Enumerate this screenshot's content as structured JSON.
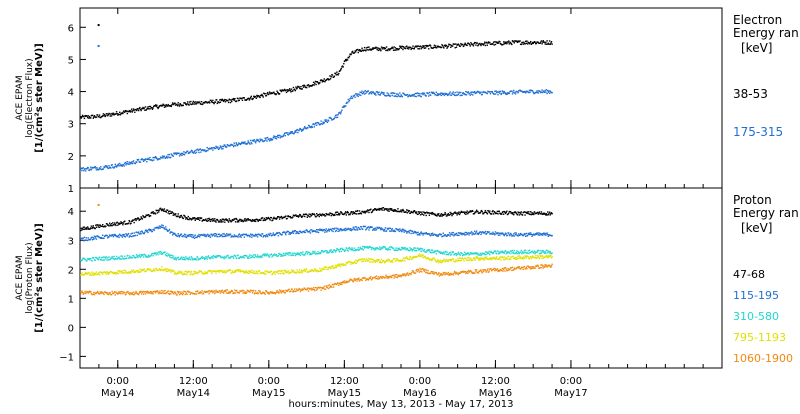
{
  "chart_data": {
    "type": "scatter",
    "xlabel": "hours:minutes, May 13, 2013 - May 17, 2013",
    "x_unit": "hours from May 13, 2013 18:00",
    "xlim": [
      0,
      102
    ],
    "x_ticks": [
      {
        "x": 6,
        "top": "0:00",
        "bottom": "May14"
      },
      {
        "x": 18,
        "top": "12:00",
        "bottom": "May14"
      },
      {
        "x": 30,
        "top": "0:00",
        "bottom": "May15"
      },
      {
        "x": 42,
        "top": "12:00",
        "bottom": "May15"
      },
      {
        "x": 54,
        "top": "0:00",
        "bottom": "May16"
      },
      {
        "x": 66,
        "top": "12:00",
        "bottom": "May16"
      },
      {
        "x": 78,
        "top": "0:00",
        "bottom": "May17"
      }
    ],
    "panels": [
      {
        "ylabel_lines": [
          "ACE EPAM",
          "log(Electron Flux)",
          "[1/(cm²s ster MeV)]"
        ],
        "ylim": [
          1,
          6.6
        ],
        "yticks": [
          1,
          2,
          3,
          4,
          5,
          6
        ],
        "legend_title": [
          "Electron",
          "Energy ran"
        ],
        "legend_unit": "[keV]",
        "series": [
          {
            "name": "38-53",
            "color": "#000000",
            "points": [
              [
                0,
                3.22
              ],
              [
                3,
                3.25
              ],
              [
                6,
                3.35
              ],
              [
                9,
                3.45
              ],
              [
                12,
                3.55
              ],
              [
                15,
                3.62
              ],
              [
                18,
                3.66
              ],
              [
                21,
                3.7
              ],
              [
                24,
                3.74
              ],
              [
                27,
                3.82
              ],
              [
                30,
                3.95
              ],
              [
                33,
                4.05
              ],
              [
                36,
                4.2
              ],
              [
                39,
                4.4
              ],
              [
                41,
                4.6
              ],
              [
                42,
                4.95
              ],
              [
                43,
                5.2
              ],
              [
                45,
                5.35
              ],
              [
                48,
                5.35
              ],
              [
                51,
                5.38
              ],
              [
                54,
                5.4
              ],
              [
                57,
                5.42
              ],
              [
                60,
                5.45
              ],
              [
                63,
                5.5
              ],
              [
                66,
                5.52
              ],
              [
                69,
                5.55
              ],
              [
                72,
                5.55
              ],
              [
                75,
                5.55
              ]
            ]
          },
          {
            "name": "175-315",
            "color": "#1f6fd4",
            "points": [
              [
                0,
                1.6
              ],
              [
                3,
                1.65
              ],
              [
                6,
                1.72
              ],
              [
                9,
                1.85
              ],
              [
                12,
                1.95
              ],
              [
                15,
                2.05
              ],
              [
                18,
                2.15
              ],
              [
                21,
                2.25
              ],
              [
                24,
                2.35
              ],
              [
                27,
                2.45
              ],
              [
                30,
                2.55
              ],
              [
                33,
                2.7
              ],
              [
                36,
                2.9
              ],
              [
                39,
                3.1
              ],
              [
                41,
                3.3
              ],
              [
                42,
                3.6
              ],
              [
                43,
                3.85
              ],
              [
                45,
                4.0
              ],
              [
                48,
                3.95
              ],
              [
                51,
                3.92
              ],
              [
                54,
                3.92
              ],
              [
                57,
                3.95
              ],
              [
                60,
                3.95
              ],
              [
                63,
                3.98
              ],
              [
                66,
                3.98
              ],
              [
                69,
                4.0
              ],
              [
                72,
                4.02
              ],
              [
                75,
                4.02
              ]
            ]
          }
        ],
        "outliers": [
          [
            2.8,
            6.1,
            "#000000"
          ],
          [
            2.8,
            5.45,
            "#1f6fd4"
          ]
        ]
      },
      {
        "ylabel_lines": [
          "ACE EPAM",
          "log(Proton Flux)",
          "[1/(cm²s ster MeV)]"
        ],
        "ylim": [
          -1.4,
          4.8
        ],
        "yticks": [
          -1,
          0,
          1,
          2,
          3,
          4
        ],
        "legend_title": [
          "Proton",
          "Energy ran"
        ],
        "legend_unit": "[keV]",
        "series": [
          {
            "name": "47-68",
            "color": "#000000",
            "points": [
              [
                0,
                3.4
              ],
              [
                4,
                3.55
              ],
              [
                8,
                3.65
              ],
              [
                11,
                3.9
              ],
              [
                13,
                4.1
              ],
              [
                15,
                3.9
              ],
              [
                18,
                3.75
              ],
              [
                22,
                3.7
              ],
              [
                26,
                3.72
              ],
              [
                30,
                3.75
              ],
              [
                34,
                3.85
              ],
              [
                38,
                3.9
              ],
              [
                42,
                3.95
              ],
              [
                45,
                4.0
              ],
              [
                48,
                4.1
              ],
              [
                51,
                4.05
              ],
              [
                54,
                3.95
              ],
              [
                57,
                3.9
              ],
              [
                60,
                3.95
              ],
              [
                63,
                4.0
              ],
              [
                66,
                3.98
              ],
              [
                69,
                3.95
              ],
              [
                72,
                3.95
              ],
              [
                75,
                3.95
              ]
            ]
          },
          {
            "name": "115-195",
            "color": "#1f6fd4",
            "points": [
              [
                0,
                3.05
              ],
              [
                4,
                3.15
              ],
              [
                8,
                3.2
              ],
              [
                11,
                3.35
              ],
              [
                13,
                3.5
              ],
              [
                15,
                3.2
              ],
              [
                18,
                3.15
              ],
              [
                22,
                3.2
              ],
              [
                26,
                3.18
              ],
              [
                30,
                3.2
              ],
              [
                34,
                3.3
              ],
              [
                38,
                3.35
              ],
              [
                42,
                3.4
              ],
              [
                45,
                3.45
              ],
              [
                48,
                3.4
              ],
              [
                51,
                3.35
              ],
              [
                54,
                3.25
              ],
              [
                57,
                3.2
              ],
              [
                60,
                3.25
              ],
              [
                63,
                3.28
              ],
              [
                66,
                3.25
              ],
              [
                69,
                3.22
              ],
              [
                72,
                3.22
              ],
              [
                75,
                3.22
              ]
            ]
          },
          {
            "name": "310-580",
            "color": "#22d6d0",
            "points": [
              [
                0,
                2.35
              ],
              [
                4,
                2.4
              ],
              [
                8,
                2.45
              ],
              [
                11,
                2.5
              ],
              [
                13,
                2.6
              ],
              [
                15,
                2.4
              ],
              [
                18,
                2.4
              ],
              [
                22,
                2.45
              ],
              [
                26,
                2.45
              ],
              [
                30,
                2.5
              ],
              [
                34,
                2.55
              ],
              [
                38,
                2.6
              ],
              [
                42,
                2.7
              ],
              [
                45,
                2.75
              ],
              [
                48,
                2.75
              ],
              [
                51,
                2.72
              ],
              [
                54,
                2.7
              ],
              [
                57,
                2.6
              ],
              [
                60,
                2.55
              ],
              [
                63,
                2.55
              ],
              [
                66,
                2.6
              ],
              [
                69,
                2.62
              ],
              [
                72,
                2.62
              ],
              [
                75,
                2.62
              ]
            ]
          },
          {
            "name": "795-1193",
            "color": "#e0e000",
            "points": [
              [
                0,
                1.85
              ],
              [
                4,
                1.9
              ],
              [
                8,
                1.95
              ],
              [
                11,
                2.0
              ],
              [
                13,
                2.05
              ],
              [
                15,
                1.9
              ],
              [
                18,
                1.9
              ],
              [
                22,
                1.95
              ],
              [
                26,
                1.95
              ],
              [
                30,
                1.9
              ],
              [
                34,
                1.95
              ],
              [
                38,
                2.0
              ],
              [
                42,
                2.2
              ],
              [
                45,
                2.35
              ],
              [
                48,
                2.3
              ],
              [
                51,
                2.35
              ],
              [
                54,
                2.5
              ],
              [
                57,
                2.3
              ],
              [
                60,
                2.35
              ],
              [
                63,
                2.4
              ],
              [
                66,
                2.4
              ],
              [
                69,
                2.42
              ],
              [
                72,
                2.45
              ],
              [
                75,
                2.45
              ]
            ]
          },
          {
            "name": "1060-1900",
            "color": "#f08a10",
            "points": [
              [
                0,
                1.22
              ],
              [
                4,
                1.2
              ],
              [
                8,
                1.2
              ],
              [
                11,
                1.22
              ],
              [
                13,
                1.25
              ],
              [
                15,
                1.2
              ],
              [
                18,
                1.22
              ],
              [
                22,
                1.25
              ],
              [
                26,
                1.25
              ],
              [
                30,
                1.22
              ],
              [
                34,
                1.3
              ],
              [
                38,
                1.35
              ],
              [
                40,
                1.45
              ],
              [
                42,
                1.6
              ],
              [
                45,
                1.7
              ],
              [
                48,
                1.75
              ],
              [
                51,
                1.8
              ],
              [
                54,
                2.0
              ],
              [
                57,
                1.85
              ],
              [
                60,
                1.9
              ],
              [
                63,
                1.95
              ],
              [
                66,
                2.0
              ],
              [
                69,
                2.05
              ],
              [
                72,
                2.1
              ],
              [
                75,
                2.15
              ]
            ]
          }
        ],
        "outliers": [
          [
            2.8,
            4.25,
            "#f08a10"
          ]
        ]
      }
    ]
  }
}
